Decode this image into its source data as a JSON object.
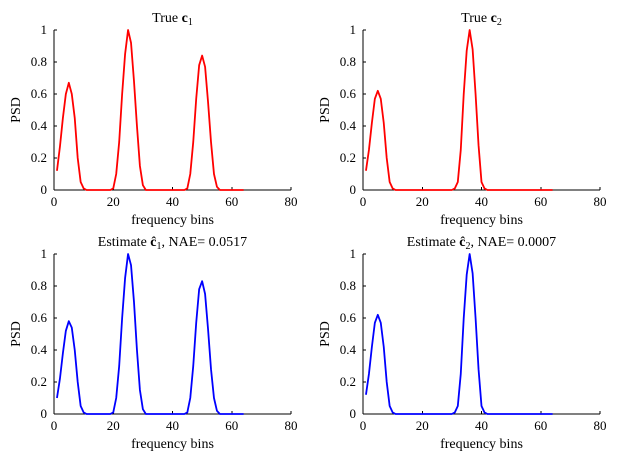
{
  "chart_data": [
    {
      "type": "line",
      "title_prefix": "True ",
      "title_symbol": "c",
      "title_sub": "1",
      "title_suffix": "",
      "xlabel": "frequency bins",
      "ylabel": "PSD",
      "xlim": [
        0,
        80
      ],
      "ylim": [
        0,
        1
      ],
      "xticks": [
        0,
        20,
        40,
        60,
        80
      ],
      "yticks": [
        0,
        0.2,
        0.4,
        0.6,
        0.8,
        1
      ],
      "color": "#ff0000",
      "x": [
        1,
        2,
        3,
        4,
        5,
        6,
        7,
        8,
        9,
        10,
        11,
        12,
        13,
        14,
        15,
        16,
        17,
        18,
        19,
        20,
        21,
        22,
        23,
        24,
        25,
        26,
        27,
        28,
        29,
        30,
        31,
        32,
        33,
        34,
        35,
        36,
        37,
        38,
        39,
        40,
        41,
        42,
        43,
        44,
        45,
        46,
        47,
        48,
        49,
        50,
        51,
        52,
        53,
        54,
        55,
        56,
        57,
        58,
        59,
        60,
        61,
        62,
        63,
        64
      ],
      "y": [
        0.12,
        0.27,
        0.45,
        0.6,
        0.67,
        0.6,
        0.45,
        0.2,
        0.05,
        0.01,
        0,
        0,
        0,
        0,
        0,
        0,
        0,
        0,
        0,
        0.01,
        0.1,
        0.3,
        0.6,
        0.85,
        1,
        0.92,
        0.68,
        0.4,
        0.15,
        0.03,
        0,
        0,
        0,
        0,
        0,
        0,
        0,
        0,
        0,
        0,
        0,
        0,
        0,
        0,
        0.01,
        0.1,
        0.3,
        0.57,
        0.78,
        0.84,
        0.77,
        0.55,
        0.3,
        0.1,
        0.02,
        0,
        0,
        0,
        0,
        0,
        0,
        0,
        0,
        0
      ]
    },
    {
      "type": "line",
      "title_prefix": "True ",
      "title_symbol": "c",
      "title_sub": "2",
      "title_suffix": "",
      "xlabel": "frequency bins",
      "ylabel": "PSD",
      "xlim": [
        0,
        80
      ],
      "ylim": [
        0,
        1
      ],
      "xticks": [
        0,
        20,
        40,
        60,
        80
      ],
      "yticks": [
        0,
        0.2,
        0.4,
        0.6,
        0.8,
        1
      ],
      "color": "#ff0000",
      "x": [
        1,
        2,
        3,
        4,
        5,
        6,
        7,
        8,
        9,
        10,
        11,
        12,
        13,
        14,
        15,
        16,
        17,
        18,
        19,
        20,
        21,
        22,
        23,
        24,
        25,
        26,
        27,
        28,
        29,
        30,
        31,
        32,
        33,
        34,
        35,
        36,
        37,
        38,
        39,
        40,
        41,
        42,
        43,
        44,
        45,
        46,
        47,
        48,
        49,
        50,
        51,
        52,
        53,
        54,
        55,
        56,
        57,
        58,
        59,
        60,
        61,
        62,
        63,
        64
      ],
      "y": [
        0.12,
        0.25,
        0.42,
        0.57,
        0.62,
        0.57,
        0.42,
        0.2,
        0.05,
        0.01,
        0,
        0,
        0,
        0,
        0,
        0,
        0,
        0,
        0,
        0,
        0,
        0,
        0,
        0,
        0,
        0,
        0,
        0,
        0,
        0,
        0.01,
        0.05,
        0.25,
        0.6,
        0.87,
        1,
        0.88,
        0.6,
        0.28,
        0.05,
        0.01,
        0,
        0,
        0,
        0,
        0,
        0,
        0,
        0,
        0,
        0,
        0,
        0,
        0,
        0,
        0,
        0,
        0,
        0,
        0,
        0,
        0,
        0,
        0
      ]
    },
    {
      "type": "line",
      "title_prefix": "Estimate ",
      "title_symbol": "ĉ",
      "title_sub": "1",
      "title_suffix": ", NAE= 0.0517",
      "xlabel": "frequency bins",
      "ylabel": "PSD",
      "xlim": [
        0,
        80
      ],
      "ylim": [
        0,
        1
      ],
      "xticks": [
        0,
        20,
        40,
        60,
        80
      ],
      "yticks": [
        0,
        0.2,
        0.4,
        0.6,
        0.8,
        1
      ],
      "color": "#0000ff",
      "x": [
        1,
        2,
        3,
        4,
        5,
        6,
        7,
        8,
        9,
        10,
        11,
        12,
        13,
        14,
        15,
        16,
        17,
        18,
        19,
        20,
        21,
        22,
        23,
        24,
        25,
        26,
        27,
        28,
        29,
        30,
        31,
        32,
        33,
        34,
        35,
        36,
        37,
        38,
        39,
        40,
        41,
        42,
        43,
        44,
        45,
        46,
        47,
        48,
        49,
        50,
        51,
        52,
        53,
        54,
        55,
        56,
        57,
        58,
        59,
        60,
        61,
        62,
        63,
        64
      ],
      "y": [
        0.1,
        0.22,
        0.38,
        0.52,
        0.58,
        0.54,
        0.4,
        0.2,
        0.05,
        0.01,
        0,
        0,
        0,
        0,
        0,
        0,
        0,
        0,
        0,
        0.01,
        0.1,
        0.3,
        0.6,
        0.85,
        1,
        0.93,
        0.7,
        0.4,
        0.15,
        0.03,
        0,
        0,
        0,
        0,
        0,
        0,
        0,
        0,
        0,
        0,
        0,
        0,
        0,
        0,
        0.01,
        0.1,
        0.3,
        0.57,
        0.78,
        0.83,
        0.75,
        0.53,
        0.28,
        0.1,
        0.02,
        0,
        0,
        0,
        0,
        0,
        0,
        0,
        0,
        0
      ]
    },
    {
      "type": "line",
      "title_prefix": "Estimate ",
      "title_symbol": "ĉ",
      "title_sub": "2",
      "title_suffix": ", NAE= 0.0007",
      "xlabel": "frequency bins",
      "ylabel": "PSD",
      "xlim": [
        0,
        80
      ],
      "ylim": [
        0,
        1
      ],
      "xticks": [
        0,
        20,
        40,
        60,
        80
      ],
      "yticks": [
        0,
        0.2,
        0.4,
        0.6,
        0.8,
        1
      ],
      "color": "#0000ff",
      "x": [
        1,
        2,
        3,
        4,
        5,
        6,
        7,
        8,
        9,
        10,
        11,
        12,
        13,
        14,
        15,
        16,
        17,
        18,
        19,
        20,
        21,
        22,
        23,
        24,
        25,
        26,
        27,
        28,
        29,
        30,
        31,
        32,
        33,
        34,
        35,
        36,
        37,
        38,
        39,
        40,
        41,
        42,
        43,
        44,
        45,
        46,
        47,
        48,
        49,
        50,
        51,
        52,
        53,
        54,
        55,
        56,
        57,
        58,
        59,
        60,
        61,
        62,
        63,
        64
      ],
      "y": [
        0.12,
        0.25,
        0.42,
        0.57,
        0.62,
        0.57,
        0.42,
        0.2,
        0.05,
        0.01,
        0,
        0,
        0,
        0,
        0,
        0,
        0,
        0,
        0,
        0,
        0,
        0,
        0,
        0,
        0,
        0,
        0,
        0,
        0,
        0,
        0.01,
        0.05,
        0.25,
        0.6,
        0.87,
        1,
        0.88,
        0.6,
        0.28,
        0.05,
        0.01,
        0,
        0,
        0,
        0,
        0,
        0,
        0,
        0,
        0,
        0,
        0,
        0,
        0,
        0,
        0,
        0,
        0,
        0,
        0,
        0,
        0,
        0,
        0
      ]
    }
  ]
}
